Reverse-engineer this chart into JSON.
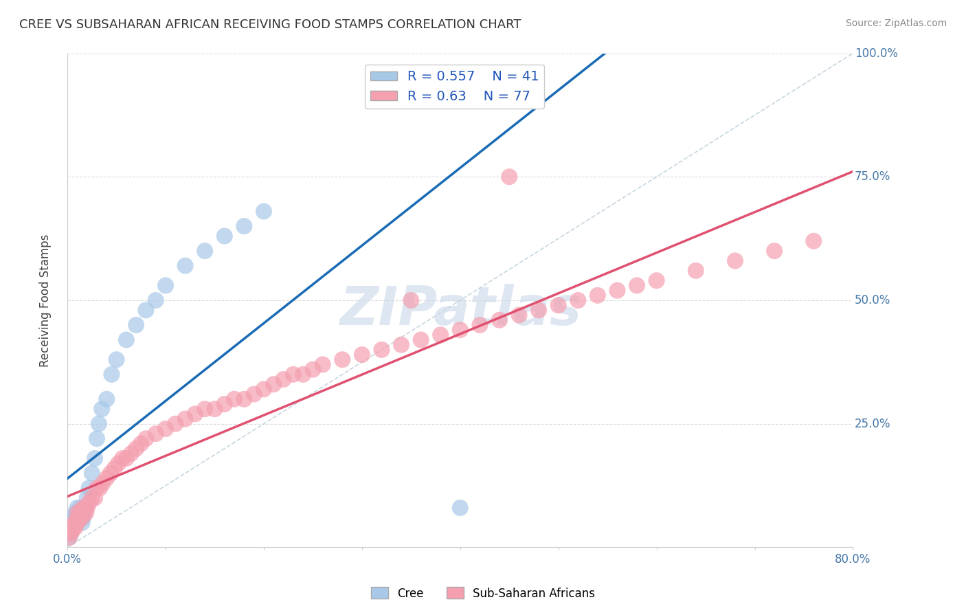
{
  "title": "CREE VS SUBSAHARAN AFRICAN RECEIVING FOOD STAMPS CORRELATION CHART",
  "source": "Source: ZipAtlas.com",
  "ylabel": "Receiving Food Stamps",
  "xlim": [
    0.0,
    0.8
  ],
  "ylim": [
    0.0,
    1.0
  ],
  "xticks": [
    0.0,
    0.1,
    0.2,
    0.3,
    0.4,
    0.5,
    0.6,
    0.7,
    0.8
  ],
  "yticks": [
    0.0,
    0.25,
    0.5,
    0.75,
    1.0
  ],
  "cree_R": 0.557,
  "cree_N": 41,
  "ssa_R": 0.63,
  "ssa_N": 77,
  "cree_color": "#a8c8e8",
  "ssa_color": "#f4a0b0",
  "cree_line_color": "#1a6bb5",
  "ssa_line_color": "#e05070",
  "ref_line_color": "#b8ccd8",
  "watermark": "ZIPatlas",
  "watermark_color": "#c8d8e8",
  "background_color": "#ffffff",
  "grid_color": "#dddddd",
  "cree_x": [
    0.002,
    0.003,
    0.004,
    0.005,
    0.005,
    0.006,
    0.007,
    0.008,
    0.008,
    0.009,
    0.01,
    0.01,
    0.011,
    0.012,
    0.013,
    0.014,
    0.015,
    0.016,
    0.017,
    0.018,
    0.02,
    0.022,
    0.025,
    0.028,
    0.03,
    0.032,
    0.035,
    0.04,
    0.045,
    0.05,
    0.06,
    0.07,
    0.08,
    0.09,
    0.1,
    0.12,
    0.14,
    0.16,
    0.18,
    0.2,
    0.4
  ],
  "cree_y": [
    0.02,
    0.03,
    0.03,
    0.04,
    0.06,
    0.04,
    0.05,
    0.05,
    0.07,
    0.06,
    0.05,
    0.08,
    0.07,
    0.06,
    0.08,
    0.07,
    0.05,
    0.06,
    0.07,
    0.08,
    0.1,
    0.12,
    0.15,
    0.18,
    0.22,
    0.25,
    0.28,
    0.3,
    0.35,
    0.38,
    0.42,
    0.45,
    0.48,
    0.5,
    0.53,
    0.57,
    0.6,
    0.63,
    0.65,
    0.68,
    0.08
  ],
  "ssa_x": [
    0.002,
    0.003,
    0.004,
    0.005,
    0.006,
    0.007,
    0.008,
    0.009,
    0.01,
    0.01,
    0.011,
    0.012,
    0.013,
    0.014,
    0.015,
    0.016,
    0.017,
    0.018,
    0.019,
    0.02,
    0.022,
    0.025,
    0.028,
    0.03,
    0.033,
    0.036,
    0.04,
    0.044,
    0.048,
    0.052,
    0.056,
    0.06,
    0.065,
    0.07,
    0.075,
    0.08,
    0.09,
    0.1,
    0.11,
    0.12,
    0.13,
    0.14,
    0.15,
    0.16,
    0.17,
    0.18,
    0.19,
    0.2,
    0.21,
    0.22,
    0.23,
    0.24,
    0.25,
    0.26,
    0.28,
    0.3,
    0.32,
    0.34,
    0.36,
    0.38,
    0.4,
    0.42,
    0.44,
    0.46,
    0.48,
    0.5,
    0.52,
    0.54,
    0.56,
    0.58,
    0.6,
    0.64,
    0.68,
    0.72,
    0.76,
    0.45,
    0.35
  ],
  "ssa_y": [
    0.02,
    0.03,
    0.03,
    0.04,
    0.04,
    0.05,
    0.04,
    0.05,
    0.05,
    0.07,
    0.06,
    0.06,
    0.07,
    0.07,
    0.06,
    0.08,
    0.07,
    0.08,
    0.07,
    0.08,
    0.09,
    0.1,
    0.1,
    0.12,
    0.12,
    0.13,
    0.14,
    0.15,
    0.16,
    0.17,
    0.18,
    0.18,
    0.19,
    0.2,
    0.21,
    0.22,
    0.23,
    0.24,
    0.25,
    0.26,
    0.27,
    0.28,
    0.28,
    0.29,
    0.3,
    0.3,
    0.31,
    0.32,
    0.33,
    0.34,
    0.35,
    0.35,
    0.36,
    0.37,
    0.38,
    0.39,
    0.4,
    0.41,
    0.42,
    0.43,
    0.44,
    0.45,
    0.46,
    0.47,
    0.48,
    0.49,
    0.5,
    0.51,
    0.52,
    0.53,
    0.54,
    0.56,
    0.58,
    0.6,
    0.62,
    0.75,
    0.5
  ]
}
